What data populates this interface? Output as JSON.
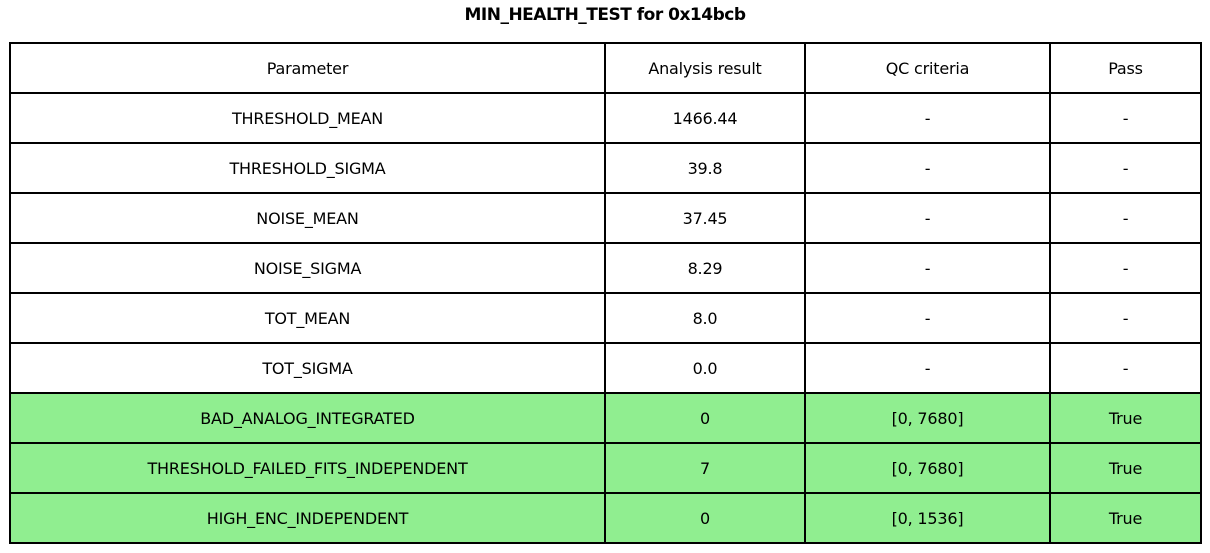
{
  "title": "MIN_HEALTH_TEST for 0x14bcb",
  "colors": {
    "highlight_green": "#90ee90",
    "row_default": "#ffffff",
    "border": "#000000",
    "text": "#000000"
  },
  "chart_data": {
    "type": "table",
    "title": "MIN_HEALTH_TEST for 0x14bcb",
    "columns": [
      "Parameter",
      "Analysis result",
      "QC criteria",
      "Pass"
    ],
    "rows": [
      {
        "param": "THRESHOLD_MEAN",
        "result": "1466.44",
        "qc": "-",
        "pass": "-",
        "highlight": false
      },
      {
        "param": "THRESHOLD_SIGMA",
        "result": "39.8",
        "qc": "-",
        "pass": "-",
        "highlight": false
      },
      {
        "param": "NOISE_MEAN",
        "result": "37.45",
        "qc": "-",
        "pass": "-",
        "highlight": false
      },
      {
        "param": "NOISE_SIGMA",
        "result": "8.29",
        "qc": "-",
        "pass": "-",
        "highlight": false
      },
      {
        "param": "TOT_MEAN",
        "result": "8.0",
        "qc": "-",
        "pass": "-",
        "highlight": false
      },
      {
        "param": "TOT_SIGMA",
        "result": "0.0",
        "qc": "-",
        "pass": "-",
        "highlight": false
      },
      {
        "param": "BAD_ANALOG_INTEGRATED",
        "result": "0",
        "qc": "[0, 7680]",
        "pass": "True",
        "highlight": true
      },
      {
        "param": "THRESHOLD_FAILED_FITS_INDEPENDENT",
        "result": "7",
        "qc": "[0, 7680]",
        "pass": "True",
        "highlight": true
      },
      {
        "param": "HIGH_ENC_INDEPENDENT",
        "result": "0",
        "qc": "[0, 1536]",
        "pass": "True",
        "highlight": true
      }
    ]
  }
}
